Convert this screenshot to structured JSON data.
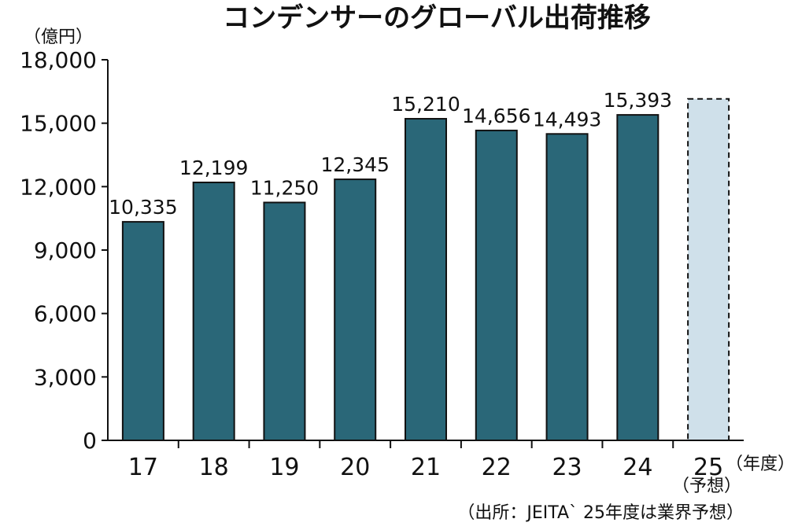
{
  "chart_data": {
    "type": "bar",
    "title": "コンデンサーのグローバル出荷推移",
    "ylabel": "（億円）",
    "xlabel": "（年度）",
    "ylim": [
      0,
      18000
    ],
    "yticks": [
      "0",
      "3,000",
      "6,000",
      "9,000",
      "12,000",
      "15,000",
      "18,000"
    ],
    "categories": [
      "17",
      "18",
      "19",
      "20",
      "21",
      "22",
      "23",
      "24",
      "25"
    ],
    "values": [
      10335,
      12199,
      11250,
      12345,
      15210,
      14656,
      14493,
      15393,
      16150
    ],
    "data_labels": [
      "10,335",
      "12,199",
      "11,250",
      "12,345",
      "15,210",
      "14,656",
      "14,493",
      "15,393",
      ""
    ],
    "forecast_note": "（予想）",
    "source": "（出所：JEITA` 25年度は業界予想）",
    "colors": {
      "bar": "#2a6778",
      "forecast": "#cfe0ea",
      "outline": "#111111"
    }
  }
}
